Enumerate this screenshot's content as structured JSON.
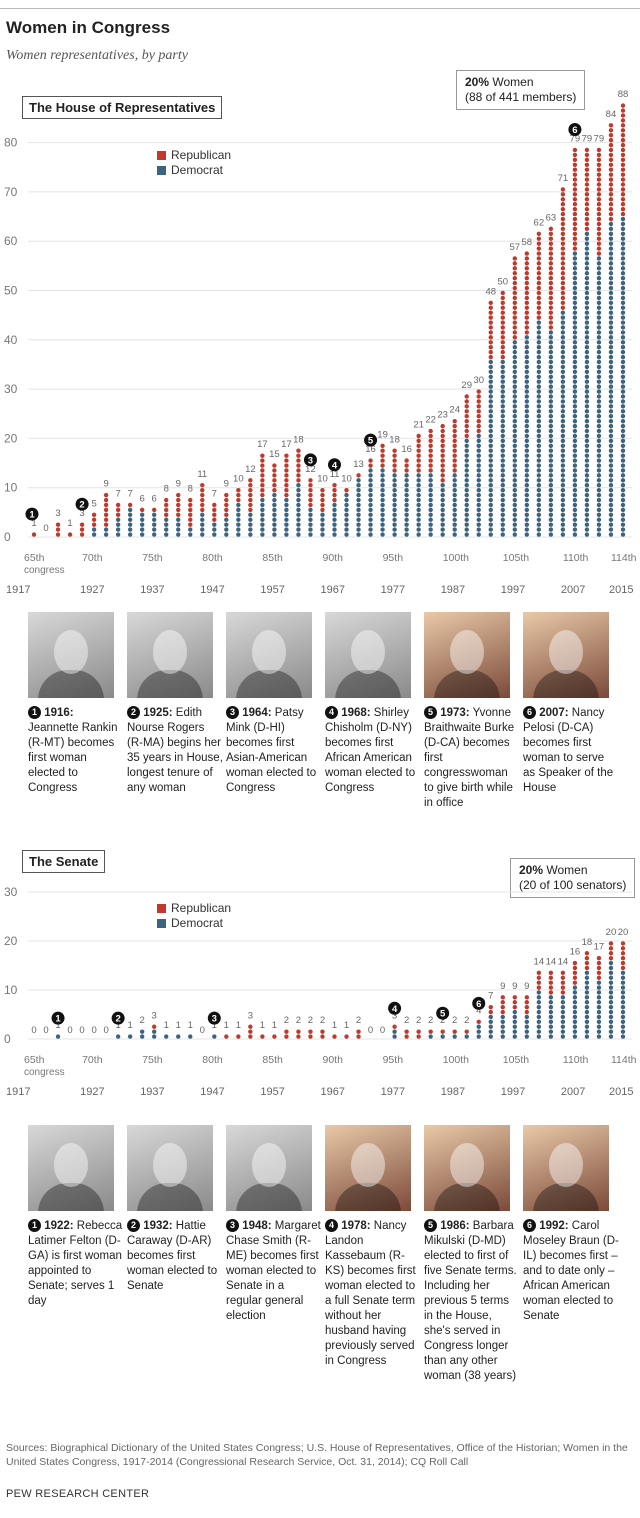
{
  "title": "Women in Congress",
  "subtitle": "Women representatives, by party",
  "source_note": "Sources: Biographical Dictionary of the United States Congress; U.S. House of Representatives, Office of the Historian; Women in the United States Congress, 1917-2014 (Congressional Research Service, Oct. 31, 2014); CQ Roll Call",
  "org": "PEW RESEARCH CENTER",
  "colors": {
    "republican": "#c0392b",
    "democrat": "#3c6380"
  },
  "house": {
    "label": "The House of Representatives",
    "callout_pct": "20%",
    "callout_text": " Women",
    "callout_sub": "(88 of 441 members)",
    "people": [
      {
        "num": "1",
        "year": "1916:",
        "text": " Jeannette Rankin (R-MT) becomes first woman elected to Congress",
        "photo": "bw"
      },
      {
        "num": "2",
        "year": "1925:",
        "text": " Edith Nourse Rogers (R-MA) begins her 35 years in House, longest tenure of any woman",
        "photo": "bw"
      },
      {
        "num": "3",
        "year": "1964:",
        "text": " Patsy Mink (D-HI) becomes first Asian-American woman elected to Congress",
        "photo": "bw"
      },
      {
        "num": "4",
        "year": "1968:",
        "text": " Shirley Chisholm (D-NY) becomes first African American woman elected to Congress",
        "photo": "bw"
      },
      {
        "num": "5",
        "year": "1973:",
        "text": " Yvonne Braithwaite Burke (D-CA) becomes first congresswoman to give birth while in office",
        "photo": "color"
      },
      {
        "num": "6",
        "year": "2007:",
        "text": " Nancy Pelosi (D-CA) becomes first woman to serve as Speaker of the House",
        "photo": "color"
      }
    ]
  },
  "senate": {
    "label": "The Senate",
    "callout_pct": "20%",
    "callout_text": " Women",
    "callout_sub": "(20 of 100 senators)",
    "people": [
      {
        "num": "1",
        "year": "1922:",
        "text": " Rebecca Latimer Felton (D-GA) is first woman appointed to Senate; serves 1 day",
        "photo": "bw"
      },
      {
        "num": "2",
        "year": "1932:",
        "text": " Hattie Caraway (D-AR) becomes first woman elected to Senate",
        "photo": "bw"
      },
      {
        "num": "3",
        "year": "1948:",
        "text": " Margaret Chase Smith (R-ME) becomes first woman elected to Senate in a regular general election",
        "photo": "bw"
      },
      {
        "num": "4",
        "year": "1978:",
        "text": " Nancy Landon Kassebaum (R-KS) becomes first woman elected to a full Senate term without her husband having previously served in Congress",
        "photo": "color"
      },
      {
        "num": "5",
        "year": "1986:",
        "text": " Barbara Mikulski (D-MD) elected to first of five Senate terms. Including her previous 5 terms in the House, she's served in Congress longer than any other woman (38 years)",
        "photo": "color"
      },
      {
        "num": "6",
        "year": "1992:",
        "text": " Carol Moseley Braun (D-IL) becomes first – and to date only – African American woman elected to Senate",
        "photo": "color"
      }
    ]
  },
  "chart_data": [
    {
      "type": "bar",
      "title": "The House of Representatives",
      "legend": [
        "Republican",
        "Democrat"
      ],
      "legend_position": "top-left",
      "ylim": [
        0,
        90
      ],
      "yticks": [
        0,
        10,
        20,
        30,
        40,
        50,
        60,
        70,
        80
      ],
      "x_congress_ticks": [
        {
          "congress": 65,
          "label": "65th",
          "sub": "congress",
          "year": "1917"
        },
        {
          "congress": 70,
          "label": "70th",
          "year": "1927"
        },
        {
          "congress": 75,
          "label": "75th",
          "year": "1937"
        },
        {
          "congress": 80,
          "label": "80th",
          "year": "1947"
        },
        {
          "congress": 85,
          "label": "85th",
          "year": "1957"
        },
        {
          "congress": 90,
          "label": "90th",
          "year": "1967"
        },
        {
          "congress": 95,
          "label": "95th",
          "year": "1977"
        },
        {
          "congress": 100,
          "label": "100th",
          "year": "1987"
        },
        {
          "congress": 105,
          "label": "105th",
          "year": "1997"
        },
        {
          "congress": 110,
          "label": "110th",
          "year": "2007"
        },
        {
          "congress": 114,
          "label": "114th",
          "year": "2015"
        }
      ],
      "congress": [
        65,
        66,
        67,
        68,
        69,
        70,
        71,
        72,
        73,
        74,
        75,
        76,
        77,
        78,
        79,
        80,
        81,
        82,
        83,
        84,
        85,
        86,
        87,
        88,
        89,
        90,
        91,
        92,
        93,
        94,
        95,
        96,
        97,
        98,
        99,
        100,
        101,
        102,
        103,
        104,
        105,
        106,
        107,
        108,
        109,
        110,
        111,
        112,
        113,
        114
      ],
      "totals": [
        1,
        0,
        3,
        1,
        3,
        5,
        9,
        7,
        7,
        6,
        6,
        8,
        9,
        8,
        11,
        7,
        9,
        10,
        12,
        17,
        15,
        17,
        18,
        12,
        10,
        11,
        10,
        13,
        16,
        19,
        18,
        16,
        21,
        22,
        23,
        24,
        29,
        30,
        48,
        50,
        57,
        58,
        62,
        63,
        71,
        79,
        79,
        79,
        84,
        88
      ],
      "series": [
        {
          "name": "Republican",
          "values": [
            1,
            0,
            3,
            1,
            3,
            3,
            7,
            3,
            1,
            1,
            1,
            4,
            5,
            6,
            6,
            4,
            5,
            3,
            7,
            9,
            6,
            9,
            7,
            6,
            5,
            4,
            1,
            1,
            2,
            5,
            5,
            3,
            8,
            9,
            12,
            11,
            9,
            9,
            12,
            14,
            17,
            17,
            18,
            21,
            25,
            21,
            17,
            22,
            20,
            23
          ]
        },
        {
          "name": "Democrat",
          "values": [
            0,
            0,
            0,
            0,
            0,
            2,
            2,
            4,
            6,
            5,
            5,
            4,
            4,
            2,
            5,
            3,
            4,
            7,
            5,
            8,
            9,
            8,
            11,
            6,
            5,
            7,
            9,
            12,
            14,
            14,
            13,
            13,
            13,
            13,
            11,
            13,
            20,
            21,
            36,
            36,
            40,
            41,
            44,
            42,
            46,
            58,
            62,
            57,
            64,
            65
          ]
        }
      ],
      "markers": [
        {
          "num": "1",
          "congress": 65
        },
        {
          "num": "2",
          "congress": 69
        },
        {
          "num": "3",
          "congress": 88
        },
        {
          "num": "4",
          "congress": 90
        },
        {
          "num": "5",
          "congress": 93
        },
        {
          "num": "6",
          "congress": 110
        }
      ]
    },
    {
      "type": "bar",
      "title": "The Senate",
      "legend": [
        "Republican",
        "Democrat"
      ],
      "legend_position": "top-left",
      "ylim": [
        0,
        30
      ],
      "yticks": [
        0,
        10,
        20,
        30
      ],
      "x_congress_ticks": [
        {
          "congress": 65,
          "label": "65th",
          "sub": "congress",
          "year": "1917"
        },
        {
          "congress": 70,
          "label": "70th",
          "year": "1927"
        },
        {
          "congress": 75,
          "label": "75th",
          "year": "1937"
        },
        {
          "congress": 80,
          "label": "80th",
          "year": "1947"
        },
        {
          "congress": 85,
          "label": "85th",
          "year": "1957"
        },
        {
          "congress": 90,
          "label": "90th",
          "year": "1967"
        },
        {
          "congress": 95,
          "label": "95th",
          "year": "1977"
        },
        {
          "congress": 100,
          "label": "100th",
          "year": "1987"
        },
        {
          "congress": 105,
          "label": "105th",
          "year": "1997"
        },
        {
          "congress": 110,
          "label": "110th",
          "year": "2007"
        },
        {
          "congress": 114,
          "label": "114th",
          "year": "2015"
        }
      ],
      "congress": [
        65,
        66,
        67,
        68,
        69,
        70,
        71,
        72,
        73,
        74,
        75,
        76,
        77,
        78,
        79,
        80,
        81,
        82,
        83,
        84,
        85,
        86,
        87,
        88,
        89,
        90,
        91,
        92,
        93,
        94,
        95,
        96,
        97,
        98,
        99,
        100,
        101,
        102,
        103,
        104,
        105,
        106,
        107,
        108,
        109,
        110,
        111,
        112,
        113,
        114
      ],
      "totals": [
        0,
        0,
        1,
        0,
        0,
        0,
        0,
        1,
        1,
        2,
        3,
        1,
        1,
        1,
        0,
        1,
        1,
        1,
        3,
        1,
        1,
        2,
        2,
        2,
        2,
        1,
        1,
        2,
        0,
        0,
        3,
        2,
        2,
        2,
        2,
        2,
        2,
        4,
        7,
        9,
        9,
        9,
        14,
        14,
        14,
        16,
        18,
        17,
        20,
        20
      ],
      "series": [
        {
          "name": "Republican",
          "values": [
            0,
            0,
            0,
            0,
            0,
            0,
            0,
            0,
            0,
            0,
            1,
            0,
            0,
            0,
            0,
            0,
            1,
            1,
            3,
            1,
            1,
            2,
            2,
            2,
            2,
            1,
            1,
            2,
            0,
            0,
            1,
            2,
            2,
            1,
            1,
            1,
            1,
            1,
            2,
            4,
            3,
            4,
            4,
            5,
            5,
            5,
            4,
            5,
            4,
            6
          ]
        },
        {
          "name": "Democrat",
          "values": [
            0,
            0,
            1,
            0,
            0,
            0,
            0,
            1,
            1,
            2,
            2,
            1,
            1,
            1,
            0,
            1,
            0,
            0,
            0,
            0,
            0,
            0,
            0,
            0,
            0,
            0,
            0,
            0,
            0,
            0,
            2,
            0,
            0,
            1,
            1,
            1,
            1,
            3,
            5,
            5,
            6,
            5,
            10,
            9,
            9,
            11,
            14,
            12,
            16,
            14
          ]
        }
      ],
      "markers": [
        {
          "num": "1",
          "congress": 67
        },
        {
          "num": "2",
          "congress": 72
        },
        {
          "num": "3",
          "congress": 80
        },
        {
          "num": "4",
          "congress": 95
        },
        {
          "num": "5",
          "congress": 99
        },
        {
          "num": "6",
          "congress": 102
        }
      ]
    }
  ]
}
